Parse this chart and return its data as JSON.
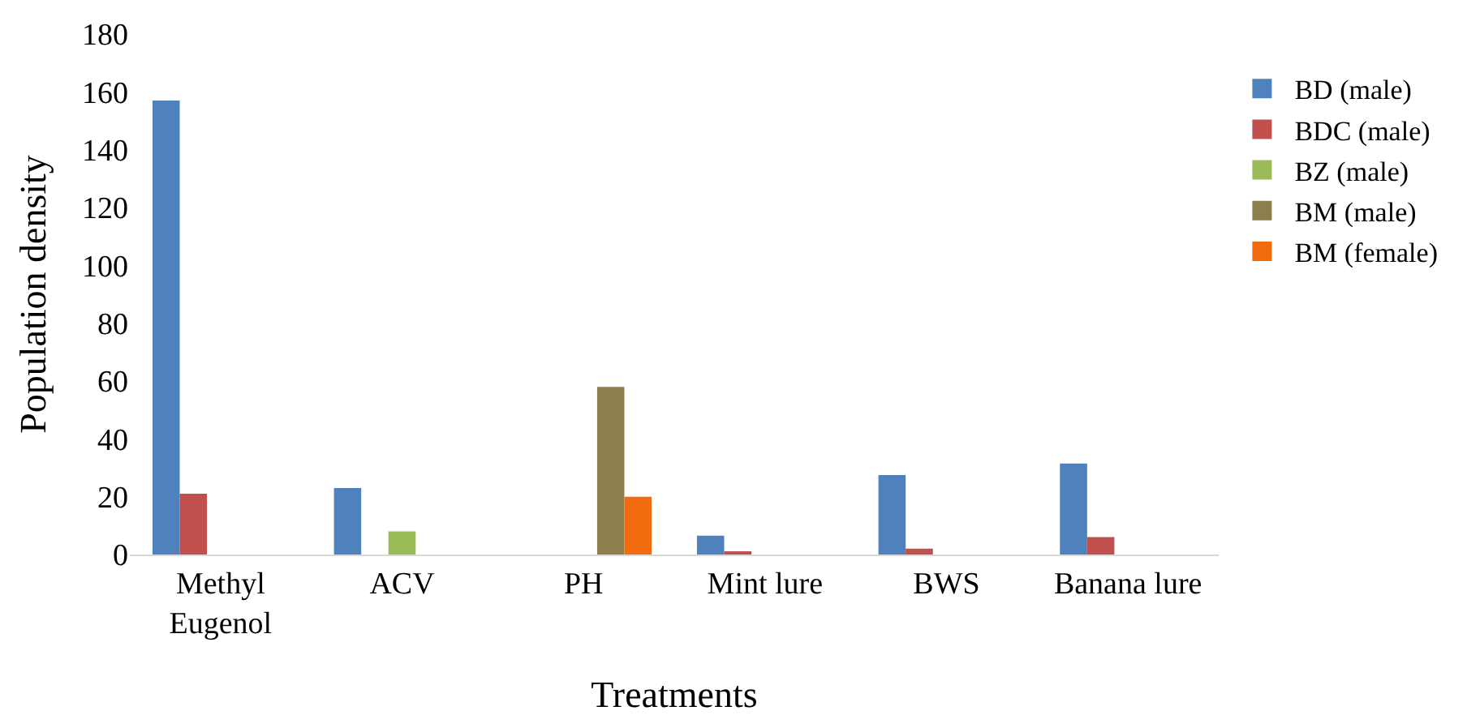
{
  "chart_data": {
    "type": "bar",
    "xlabel": "Treatments",
    "ylabel": "Population density",
    "categories": [
      "Methyl\nEugenol",
      "ACV",
      "PH",
      "Mint lure",
      "BWS",
      "Banana lure"
    ],
    "series": [
      {
        "name": "BD (male)",
        "color": "#4f81bd",
        "values": [
          157,
          23,
          0,
          6.5,
          27.5,
          31.5
        ]
      },
      {
        "name": "BDC (male)",
        "color": "#c0504d",
        "values": [
          21,
          0,
          0,
          1,
          2,
          6
        ]
      },
      {
        "name": "BZ (male)",
        "color": "#9bbb59",
        "values": [
          0,
          8,
          0,
          0,
          0,
          0
        ]
      },
      {
        "name": "BM (male)",
        "color": "#8c7f4b",
        "values": [
          0,
          0,
          58,
          0,
          0,
          0
        ]
      },
      {
        "name": "BM (female)",
        "color": "#f26b0f",
        "values": [
          0,
          0,
          20,
          0,
          0,
          0
        ]
      }
    ],
    "ylim": [
      0,
      180
    ],
    "yticks": [
      0,
      20,
      40,
      60,
      80,
      100,
      120,
      140,
      160,
      180
    ],
    "legend": "right"
  }
}
